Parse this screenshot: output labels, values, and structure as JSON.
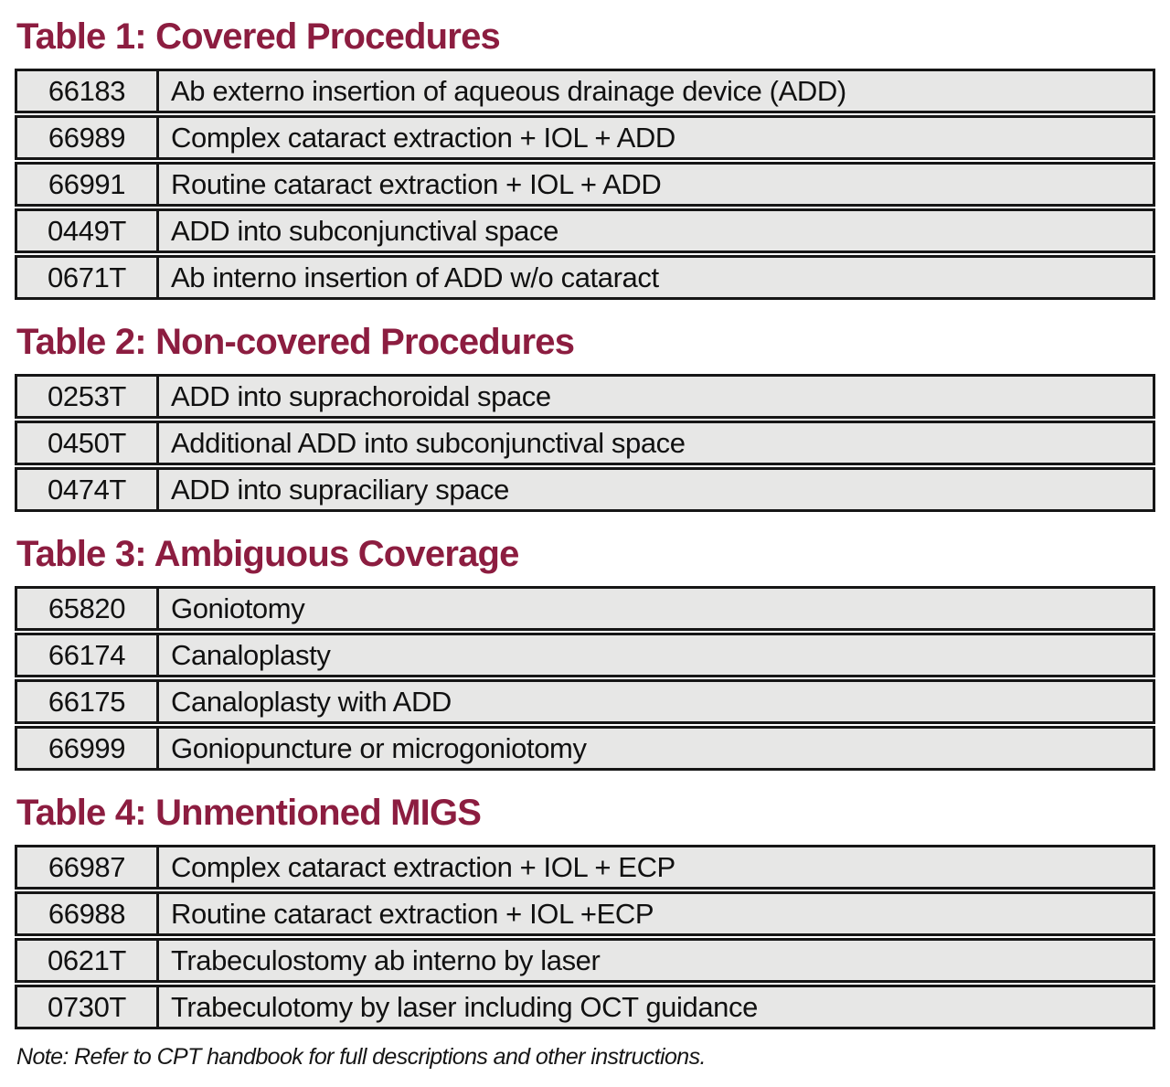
{
  "colors": {
    "heading": "#8C1D40",
    "cell_background": "#e7e7e6",
    "border": "#161616"
  },
  "tables": [
    {
      "title": "Table 1: Covered Procedures",
      "rows": [
        {
          "code": "66183",
          "description": "Ab externo insertion of aqueous drainage device (ADD)"
        },
        {
          "code": "66989",
          "description": "Complex cataract extraction + IOL + ADD"
        },
        {
          "code": "66991",
          "description": "Routine cataract extraction + IOL + ADD"
        },
        {
          "code": "0449T",
          "description": "ADD into subconjunctival space"
        },
        {
          "code": "0671T",
          "description": "Ab interno insertion of ADD w/o cataract"
        }
      ]
    },
    {
      "title": "Table 2: Non-covered Procedures",
      "rows": [
        {
          "code": "0253T",
          "description": "ADD into suprachoroidal space"
        },
        {
          "code": "0450T",
          "description": "Additional ADD into subconjunctival space"
        },
        {
          "code": "0474T",
          "description": "ADD into supraciliary space"
        }
      ]
    },
    {
      "title": "Table 3: Ambiguous Coverage",
      "rows": [
        {
          "code": "65820",
          "description": "Goniotomy"
        },
        {
          "code": "66174",
          "description": "Canaloplasty"
        },
        {
          "code": "66175",
          "description": "Canaloplasty with ADD"
        },
        {
          "code": "66999",
          "description": "Goniopuncture or microgoniotomy"
        }
      ]
    },
    {
      "title": "Table 4: Unmentioned MIGS",
      "rows": [
        {
          "code": "66987",
          "description": "Complex cataract extraction + IOL + ECP"
        },
        {
          "code": "66988",
          "description": "Routine cataract extraction + IOL +ECP"
        },
        {
          "code": "0621T",
          "description": "Trabeculostomy ab interno by laser"
        },
        {
          "code": "0730T",
          "description": "Trabeculotomy by laser including OCT guidance"
        }
      ]
    }
  ],
  "footnote": "Note: Refer to CPT handbook for full descriptions and other instructions."
}
